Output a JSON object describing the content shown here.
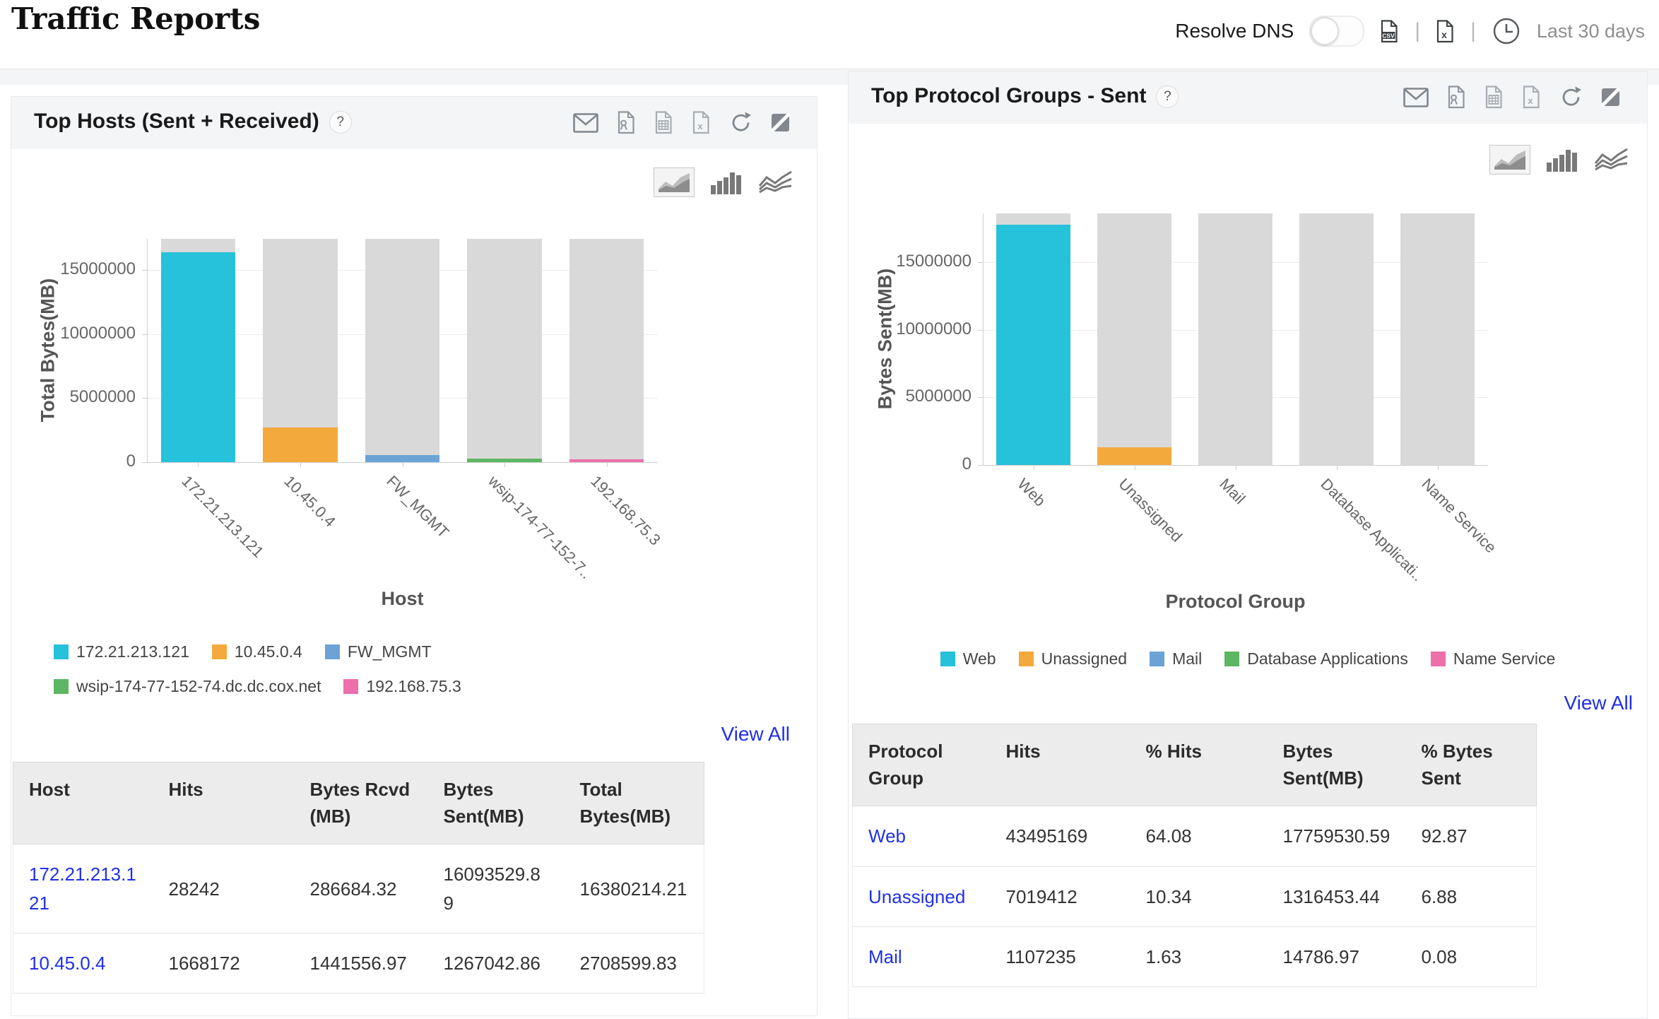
{
  "page": {
    "title": "Traffic Reports"
  },
  "toolbar": {
    "resolve_dns_label": "Resolve DNS",
    "resolve_dns_state": "off",
    "separator": "|",
    "period_label": "Last 30 days",
    "icons": [
      "csv-export-icon",
      "excel-export-icon",
      "time-period-icon"
    ]
  },
  "colors": {
    "cyan": "#26c1da",
    "orange": "#f4a93d",
    "blue": "#6ba3d6",
    "green": "#5db661",
    "pink": "#ee6fa9",
    "backdrop": "#d9d9d9",
    "link": "#2030e8"
  },
  "panels": {
    "top_hosts": {
      "title": "Top Hosts (Sent + Received)",
      "help_label": "?",
      "view_all_label": "View All",
      "export_icons": [
        "email-icon",
        "pdf-export-icon",
        "spreadsheet-export-icon",
        "excel-export-icon",
        "refresh-icon",
        "expand-icon"
      ],
      "chart_type_icons": [
        "area-chart-icon",
        "bar-chart-icon",
        "line-chart-icon"
      ],
      "selected_chart_type": "area",
      "chart_data": {
        "type": "bar",
        "title": "",
        "xlabel": "Host",
        "ylabel": "Total Bytes(MB)",
        "categories": [
          "172.21.213.121",
          "10.45.0.4",
          "FW_MGMT",
          "wsip-174-77-152-7..",
          "192.168.75.3"
        ],
        "values": [
          16380214.21,
          2708599.83,
          550000,
          300000,
          200000
        ],
        "bar_colors": [
          "#26c1da",
          "#f4a93d",
          "#6ba3d6",
          "#5db661",
          "#ee6fa9"
        ],
        "backdrop_value": 17430000,
        "ylim": [
          0,
          17430000
        ],
        "yticks": [
          0,
          5000000,
          10000000,
          15000000
        ],
        "ytick_labels": [
          "0",
          "5000000",
          "10000000",
          "15000000"
        ],
        "grid": true,
        "legend_position": "bottom"
      },
      "legend": [
        {
          "label": "172.21.213.121",
          "color": "#26c1da"
        },
        {
          "label": "10.45.0.4",
          "color": "#f4a93d"
        },
        {
          "label": "FW_MGMT",
          "color": "#6ba3d6"
        },
        {
          "label": "wsip-174-77-152-74.dc.dc.cox.net",
          "color": "#5db661"
        },
        {
          "label": "192.168.75.3",
          "color": "#ee6fa9"
        }
      ],
      "table": {
        "columns": [
          "Host",
          "Hits",
          "Bytes Rcvd (MB)",
          "Bytes Sent(MB)",
          "Total Bytes(MB)"
        ],
        "rows": [
          [
            "172.21.213.121",
            "28242",
            "286684.32",
            "16093529.89",
            "16380214.21"
          ],
          [
            "10.45.0.4",
            "1668172",
            "1441556.97",
            "1267042.86",
            "2708599.83"
          ]
        ]
      }
    },
    "top_protocol_groups": {
      "title": "Top Protocol Groups - Sent",
      "help_label": "?",
      "view_all_label": "View All",
      "export_icons": [
        "email-icon",
        "pdf-export-icon",
        "spreadsheet-export-icon",
        "excel-export-icon",
        "refresh-icon",
        "expand-icon"
      ],
      "chart_type_icons": [
        "area-chart-icon",
        "bar-chart-icon",
        "line-chart-icon"
      ],
      "selected_chart_type": "area",
      "chart_data": {
        "type": "bar",
        "title": "",
        "xlabel": "Protocol Group",
        "ylabel": "Bytes Sent(MB)",
        "categories": [
          "Web",
          "Unassigned",
          "Mail",
          "Database Applicati..",
          "Name Service"
        ],
        "values": [
          17759530.59,
          1316453.44,
          14786.97,
          0,
          0
        ],
        "bar_colors": [
          "#26c1da",
          "#f4a93d",
          "#6ba3d6",
          "#5db661",
          "#ee6fa9"
        ],
        "backdrop_value": 18600000,
        "ylim": [
          0,
          18600000
        ],
        "yticks": [
          0,
          5000000,
          10000000,
          15000000
        ],
        "ytick_labels": [
          "0",
          "5000000",
          "10000000",
          "15000000"
        ],
        "grid": true,
        "legend_position": "bottom"
      },
      "legend": [
        {
          "label": "Web",
          "color": "#26c1da"
        },
        {
          "label": "Unassigned",
          "color": "#f4a93d"
        },
        {
          "label": "Mail",
          "color": "#6ba3d6"
        },
        {
          "label": "Database Applications",
          "color": "#5db661"
        },
        {
          "label": "Name Service",
          "color": "#ee6fa9"
        }
      ],
      "table": {
        "columns": [
          "Protocol Group",
          "Hits",
          "% Hits",
          "Bytes Sent(MB)",
          "% Bytes Sent"
        ],
        "rows": [
          [
            "Web",
            "43495169",
            "64.08",
            "17759530.59",
            "92.87"
          ],
          [
            "Unassigned",
            "7019412",
            "10.34",
            "1316453.44",
            "6.88"
          ],
          [
            "Mail",
            "1107235",
            "1.63",
            "14786.97",
            "0.08"
          ]
        ]
      }
    }
  }
}
